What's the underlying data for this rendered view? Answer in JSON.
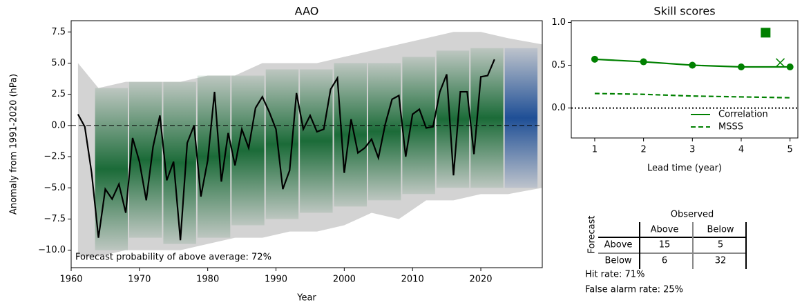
{
  "chart_data": [
    {
      "type": "line",
      "title": "AAO",
      "xlabel": "Year",
      "ylabel": "Anomaly from 1991-2020 (hPa)",
      "annotation": "Forecast probability of above average: 72%",
      "xlim": [
        1960,
        2029
      ],
      "ylim": [
        -11.4,
        8.4
      ],
      "xticks": [
        1960,
        1970,
        1980,
        1990,
        2000,
        2010,
        2020
      ],
      "yticks": [
        {
          "value": -10,
          "label": "−10.0"
        },
        {
          "value": -7.5,
          "label": "−7.5"
        },
        {
          "value": -5,
          "label": "−5.0"
        },
        {
          "value": -2.5,
          "label": "−2.5"
        },
        {
          "value": 0,
          "label": "0.0"
        },
        {
          "value": 2.5,
          "label": "2.5"
        },
        {
          "value": 5,
          "label": "5.0"
        },
        {
          "value": 7.5,
          "label": "7.5"
        }
      ],
      "reference_line": 0,
      "reference_style": "dashed",
      "envelope": {
        "color": "#d3d3d3",
        "x": [
          1961,
          1964,
          1968,
          1972,
          1976,
          1980,
          1984,
          1988,
          1992,
          1996,
          2000,
          2004,
          2008,
          2012,
          2016,
          2020,
          2024,
          2029
        ],
        "upper": [
          5,
          3,
          3.5,
          3.5,
          3.5,
          4,
          4,
          5,
          5,
          5,
          5.5,
          6,
          6.5,
          7,
          7.5,
          7.5,
          7,
          6.5
        ],
        "lower": [
          -10.5,
          -10.5,
          -10,
          -10,
          -10,
          -9.5,
          -9,
          -9,
          -8.5,
          -8.5,
          -8,
          -7,
          -7.5,
          -6,
          -6,
          -5.5,
          -5.5,
          -5
        ]
      },
      "forecast_color": "#1b6b38",
      "forecasts": [
        {
          "start": 1964,
          "end": 1968,
          "low": -10,
          "high": 3
        },
        {
          "start": 1969,
          "end": 1973,
          "low": -9,
          "high": 3.5
        },
        {
          "start": 1974,
          "end": 1978,
          "low": -9.5,
          "high": 3.5
        },
        {
          "start": 1979,
          "end": 1983,
          "low": -9,
          "high": 4
        },
        {
          "start": 1984,
          "end": 1988,
          "low": -8,
          "high": 4
        },
        {
          "start": 1989,
          "end": 1993,
          "low": -7.5,
          "high": 4.5
        },
        {
          "start": 1994,
          "end": 1998,
          "low": -7,
          "high": 4.5
        },
        {
          "start": 1999,
          "end": 2003,
          "low": -6.5,
          "high": 5
        },
        {
          "start": 2004,
          "end": 2008,
          "low": -6,
          "high": 5
        },
        {
          "start": 2009,
          "end": 2013,
          "low": -5.5,
          "high": 5.5
        },
        {
          "start": 2014,
          "end": 2018,
          "low": -5,
          "high": 6
        },
        {
          "start": 2019,
          "end": 2023,
          "low": -5,
          "high": 6.2
        }
      ],
      "outlook_color": "#1f4f96",
      "outlook": {
        "start": 2024,
        "end": 2028,
        "low": -5,
        "high": 6.2
      },
      "x": [
        1961,
        1962,
        1963,
        1964,
        1965,
        1966,
        1967,
        1968,
        1969,
        1970,
        1971,
        1972,
        1973,
        1974,
        1975,
        1976,
        1977,
        1978,
        1979,
        1980,
        1981,
        1982,
        1983,
        1984,
        1985,
        1986,
        1987,
        1988,
        1989,
        1990,
        1991,
        1992,
        1993,
        1994,
        1995,
        1996,
        1997,
        1998,
        1999,
        2000,
        2001,
        2002,
        2003,
        2004,
        2005,
        2006,
        2007,
        2008,
        2009,
        2010,
        2011,
        2012,
        2013,
        2014,
        2015,
        2016,
        2017,
        2018,
        2019,
        2020,
        2021,
        2022
      ],
      "series": [
        {
          "color": "#000000",
          "style": "solid",
          "values": [
            0.9,
            -0.1,
            -3.8,
            -9.0,
            -5.1,
            -5.9,
            -4.7,
            -7.0,
            -1.0,
            -2.9,
            -6.0,
            -1.7,
            0.8,
            -4.4,
            -2.9,
            -9.2,
            -1.4,
            0.0,
            -5.7,
            -2.8,
            2.7,
            -4.5,
            -0.6,
            -3.2,
            -0.3,
            -1.8,
            1.4,
            2.3,
            1.1,
            -0.3,
            -5.1,
            -3.6,
            2.6,
            -0.3,
            0.8,
            -0.5,
            -0.3,
            2.9,
            3.8,
            -3.8,
            0.5,
            -2.2,
            -1.8,
            -1.1,
            -2.6,
            0.1,
            2.1,
            2.4,
            -2.5,
            0.9,
            1.3,
            -0.2,
            -0.1,
            2.7,
            4.1,
            -4.0,
            2.7,
            2.7,
            -2.3,
            3.9,
            4.0,
            5.3
          ]
        }
      ]
    },
    {
      "type": "line",
      "title": "Skill scores",
      "xlabel": "Lead time (year)",
      "xlim": [
        0.52,
        5.16
      ],
      "ylim": [
        -0.35,
        1.02
      ],
      "xticks": [
        1,
        2,
        3,
        4,
        5
      ],
      "yticks": [
        {
          "value": 0,
          "label": "0.0"
        },
        {
          "value": 0.5,
          "label": "0.5"
        },
        {
          "value": 1,
          "label": "1.0"
        }
      ],
      "reference_line": 0,
      "reference_style": "dotted",
      "legend": "lower right",
      "x": [
        1,
        2,
        3,
        4,
        5
      ],
      "series": [
        {
          "name": "Correlation",
          "color": "#008000",
          "style": "solid",
          "marker": "circle",
          "values": [
            0.57,
            0.54,
            0.5,
            0.48,
            0.48
          ]
        },
        {
          "name": "MSSS",
          "color": "#008000",
          "style": "dashed",
          "values": [
            0.17,
            0.16,
            0.14,
            0.13,
            0.12
          ]
        }
      ],
      "points": [
        {
          "x": 4.5,
          "y": 0.88,
          "marker": "square",
          "color": "#008000"
        },
        {
          "x": 4.8,
          "y": 0.53,
          "marker": "x",
          "color": "#008000"
        }
      ]
    }
  ],
  "table": {
    "title": "Observed",
    "row_title": "Forecast",
    "columns": [
      "Above",
      "Below"
    ],
    "rows": [
      [
        "Above",
        "15",
        "5"
      ],
      [
        "Below",
        "6",
        "32"
      ]
    ]
  },
  "stats": [
    "Hit rate: 71%",
    "False alarm rate: 25%"
  ]
}
